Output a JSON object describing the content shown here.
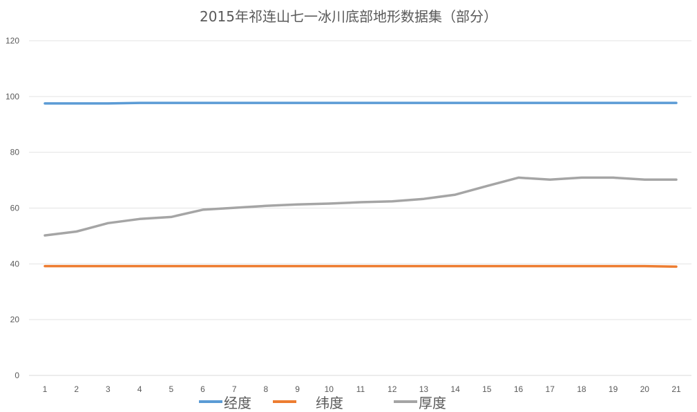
{
  "chart_data": {
    "type": "line",
    "title": "2015年祁连山七一冰川底部地形数据集（部分）",
    "xlabel": "",
    "ylabel": "",
    "x": [
      1,
      2,
      3,
      4,
      5,
      6,
      7,
      8,
      9,
      10,
      11,
      12,
      13,
      14,
      15,
      16,
      17,
      18,
      19,
      20,
      21
    ],
    "categories": [
      "1",
      "2",
      "3",
      "4",
      "5",
      "6",
      "7",
      "8",
      "9",
      "10",
      "11",
      "12",
      "13",
      "14",
      "15",
      "16",
      "17",
      "18",
      "19",
      "20",
      "21"
    ],
    "ylim": [
      0,
      120
    ],
    "yticks": [
      0,
      20,
      40,
      60,
      80,
      100,
      120
    ],
    "grid": true,
    "legend_position": "bottom",
    "series": [
      {
        "name": "经度",
        "color": "#5b9bd5",
        "values": [
          97.5,
          97.5,
          97.5,
          97.7,
          97.7,
          97.7,
          97.7,
          97.7,
          97.7,
          97.7,
          97.7,
          97.7,
          97.7,
          97.7,
          97.7,
          97.7,
          97.7,
          97.7,
          97.7,
          97.7,
          97.7
        ]
      },
      {
        "name": "纬度",
        "color": "#ed7d31",
        "values": [
          39.2,
          39.2,
          39.2,
          39.2,
          39.2,
          39.2,
          39.2,
          39.2,
          39.2,
          39.2,
          39.2,
          39.2,
          39.2,
          39.2,
          39.2,
          39.2,
          39.2,
          39.2,
          39.2,
          39.2,
          39.0
        ]
      },
      {
        "name": "厚度",
        "color": "#a5a5a5",
        "values": [
          50.2,
          51.6,
          54.6,
          56.1,
          56.8,
          59.4,
          60.1,
          60.8,
          61.3,
          61.6,
          62.1,
          62.4,
          63.3,
          64.8,
          67.9,
          70.9,
          70.2,
          70.9,
          70.9,
          70.2,
          70.2
        ]
      }
    ]
  }
}
